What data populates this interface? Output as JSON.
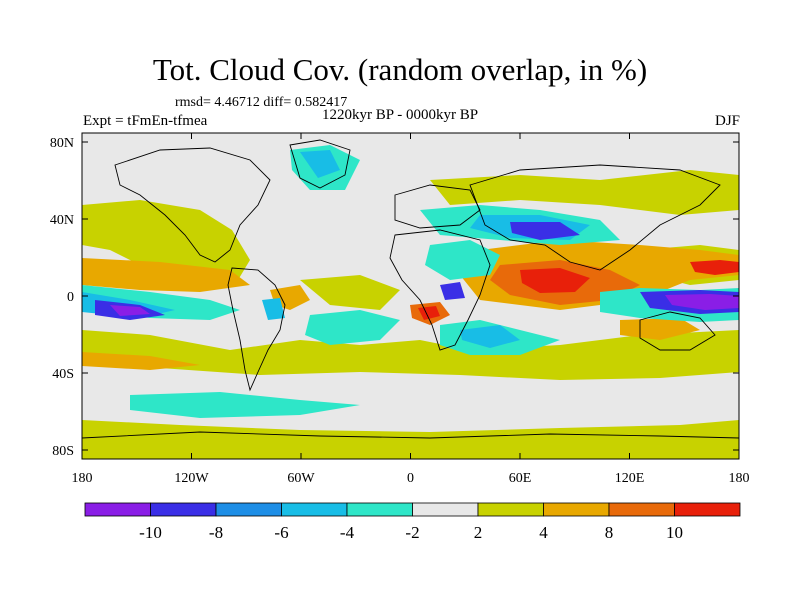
{
  "header": {
    "title": "Tot. Cloud Cov. (random overlap, in %)",
    "stats": "rmsd= 4.46712 diff= 0.582417",
    "subtitle": "1220kyr BP - 0000kyr BP",
    "experiment": "Expt = tFmEn-tfmea",
    "season": "DJF"
  },
  "map": {
    "lon_ticks": [
      "180",
      "120W",
      "60W",
      "0",
      "60E",
      "120E",
      "180"
    ],
    "lat_ticks": [
      "80N",
      "40N",
      "0",
      "40S",
      "80S"
    ]
  },
  "colorbar": {
    "labels": [
      "-10",
      "-8",
      "-6",
      "-4",
      "-2",
      "2",
      "4",
      "8",
      "10"
    ],
    "colors": [
      "#8a1ee6",
      "#3a2ee6",
      "#1e8ee6",
      "#18bde6",
      "#2ee6c8",
      "#e8e8e8",
      "#c8d200",
      "#e8a800",
      "#e86a0a",
      "#e8200a"
    ]
  },
  "palette": {
    "neg1": "#8a1ee6",
    "neg2": "#3a2ee6",
    "neg3": "#1e8ee6",
    "neg4": "#18bde6",
    "neg5": "#2ee6c8",
    "neutral": "#e8e8e8",
    "pos1": "#c8d200",
    "pos2": "#e8a800",
    "pos3": "#e86a0a",
    "pos4": "#e8200a"
  }
}
